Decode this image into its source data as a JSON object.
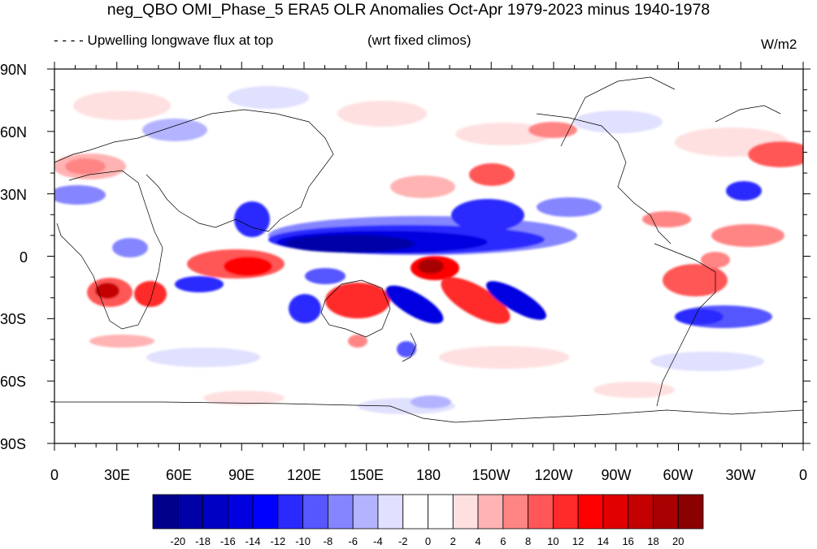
{
  "title": "neg_QBO OMI_Phase_5 ERA5 OLR Anomalies Oct-Apr 1979-2023 minus 1940-1978",
  "subtitle_left": "- - - - Upwelling longwave flux at top",
  "subtitle_mid": "(wrt fixed climos)",
  "units": "W/m2",
  "lat_labels": [
    "90N",
    "60N",
    "30N",
    "0",
    "30S",
    "60S",
    "90S"
  ],
  "lon_labels": [
    "0",
    "30E",
    "60E",
    "90E",
    "120E",
    "150E",
    "180",
    "150W",
    "120W",
    "90W",
    "60W",
    "30W",
    "0"
  ],
  "colorbar": {
    "labels": [
      "-20",
      "-18",
      "-16",
      "-14",
      "-12",
      "-10",
      "-8",
      "-6",
      "-4",
      "-2",
      "0",
      "2",
      "4",
      "6",
      "8",
      "10",
      "12",
      "14",
      "16",
      "18",
      "20"
    ],
    "colors": [
      "#00008b",
      "#0000a8",
      "#0000c4",
      "#0000e0",
      "#0000ff",
      "#2a2aff",
      "#5757ff",
      "#8585ff",
      "#b3b3ff",
      "#e0e0ff",
      "#ffffff",
      "#ffffff",
      "#ffe0e0",
      "#ffb3b3",
      "#ff8585",
      "#ff5757",
      "#ff2a2a",
      "#ff0000",
      "#e00000",
      "#c40000",
      "#a80000",
      "#8b0000"
    ]
  }
}
